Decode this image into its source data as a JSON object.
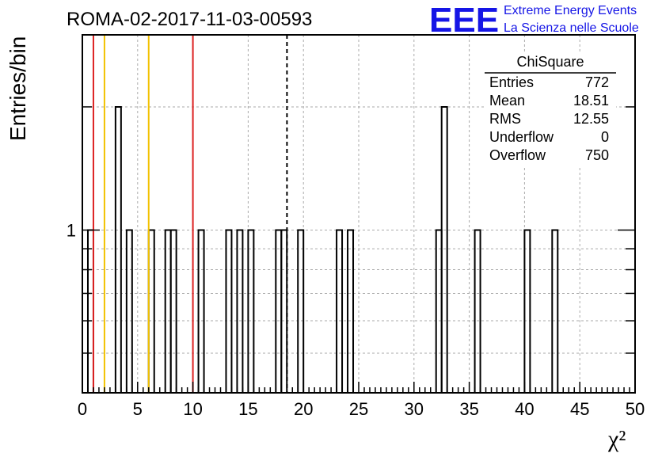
{
  "title": "ROMA-02-2017-11-03-00593",
  "logo": {
    "mark": "EEE",
    "line1": "Extreme Energy Events",
    "line2": "La Scienza nelle Scuole",
    "color": "#1515e6"
  },
  "stats": {
    "header": "ChiSquare",
    "rows": [
      {
        "label": "Entries",
        "value": "772"
      },
      {
        "label": "Mean",
        "value": "18.51"
      },
      {
        "label": "RMS",
        "value": "12.55"
      },
      {
        "label": "Underflow",
        "value": "0"
      },
      {
        "label": "Overflow",
        "value": "750"
      }
    ]
  },
  "chart_data": {
    "type": "bar",
    "histogram": true,
    "title": "ROMA-02-2017-11-03-00593",
    "xlabel": "χ²",
    "ylabel": "Entries/bin",
    "xlim": [
      0,
      50
    ],
    "ylog": true,
    "ylim": [
      0.4,
      3
    ],
    "bin_width": 0.5,
    "x_ticks": [
      "0",
      "5",
      "10",
      "15",
      "20",
      "25",
      "30",
      "35",
      "40",
      "45",
      "50"
    ],
    "y_ticks": [
      "1"
    ],
    "grid": true,
    "bins": [
      {
        "x": 0.75,
        "y": 1
      },
      {
        "x": 3.25,
        "y": 2
      },
      {
        "x": 4.25,
        "y": 1
      },
      {
        "x": 6.25,
        "y": 1
      },
      {
        "x": 7.75,
        "y": 1
      },
      {
        "x": 8.25,
        "y": 1
      },
      {
        "x": 10.75,
        "y": 1
      },
      {
        "x": 13.25,
        "y": 1
      },
      {
        "x": 14.25,
        "y": 1
      },
      {
        "x": 15.25,
        "y": 1
      },
      {
        "x": 17.75,
        "y": 1
      },
      {
        "x": 18.25,
        "y": 1
      },
      {
        "x": 19.75,
        "y": 1
      },
      {
        "x": 23.25,
        "y": 1
      },
      {
        "x": 24.25,
        "y": 1
      },
      {
        "x": 32.25,
        "y": 1
      },
      {
        "x": 32.75,
        "y": 2
      },
      {
        "x": 35.75,
        "y": 1
      },
      {
        "x": 40.25,
        "y": 1
      },
      {
        "x": 42.75,
        "y": 1
      }
    ],
    "reference_lines": [
      {
        "x": 1.0,
        "color": "#dd2222",
        "style": "solid"
      },
      {
        "x": 2.0,
        "color": "#f2c200",
        "style": "solid"
      },
      {
        "x": 6.0,
        "color": "#f2c200",
        "style": "solid"
      },
      {
        "x": 10.0,
        "color": "#dd2222",
        "style": "solid"
      },
      {
        "x": 18.51,
        "color": "#000000",
        "style": "dashed"
      }
    ]
  }
}
